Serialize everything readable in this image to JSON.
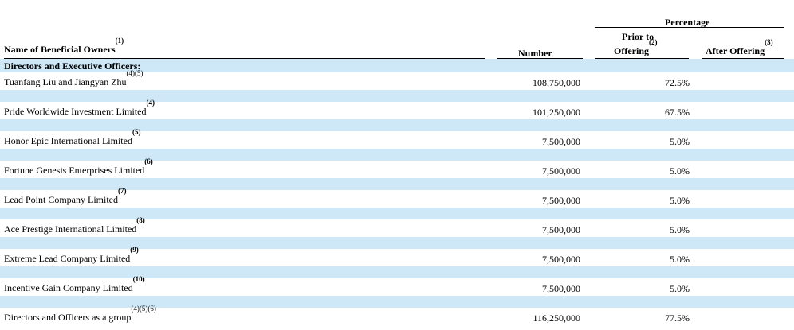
{
  "header": {
    "name_col": "Name of Beneficial Owners",
    "name_col_sup": "(1)",
    "number_col": "Number",
    "percentage_group": "Percentage",
    "prior_line1": "Prior to",
    "prior_line2": "Offering",
    "prior_sup": "(2)",
    "after_col": "After Offering",
    "after_sup": "(3)"
  },
  "section_title": "Directors and Executive Officers:",
  "rows": [
    {
      "name": "Tuanfang Liu and Jiangyan Zhu",
      "sup": "(4)(5)",
      "sup_bold": false,
      "number": "108,750,000",
      "prior": "72.5%",
      "after": ""
    },
    {
      "name": "Pride Worldwide Investment Limited",
      "sup": "(4)",
      "sup_bold": true,
      "number": "101,250,000",
      "prior": "67.5%",
      "after": ""
    },
    {
      "name": "Honor Epic International Limited",
      "sup": "(5)",
      "sup_bold": true,
      "number": "7,500,000",
      "prior": "5.0%",
      "after": ""
    },
    {
      "name": "Fortune Genesis Enterprises Limited",
      "sup": "(6)",
      "sup_bold": true,
      "number": "7,500,000",
      "prior": "5.0%",
      "after": ""
    },
    {
      "name": "Lead Point Company Limited",
      "sup": "(7)",
      "sup_bold": true,
      "number": "7,500,000",
      "prior": "5.0%",
      "after": ""
    },
    {
      "name": "Ace Prestige International Limited",
      "sup": "(8)",
      "sup_bold": true,
      "number": "7,500,000",
      "prior": "5.0%",
      "after": ""
    },
    {
      "name": "Extreme Lead Company Limited",
      "sup": "(9)",
      "sup_bold": true,
      "number": "7,500,000",
      "prior": "5.0%",
      "after": ""
    },
    {
      "name": "Incentive Gain Company Limited",
      "sup": "(10)",
      "sup_bold": true,
      "number": "7,500,000",
      "prior": "5.0%",
      "after": ""
    },
    {
      "name": "Directors and Officers as a group",
      "sup": "(4)(5)(6)",
      "sup_bold": false,
      "number": "116,250,000",
      "prior": "77.5%",
      "after": ""
    }
  ],
  "colors": {
    "band": "#cfe8f7"
  }
}
